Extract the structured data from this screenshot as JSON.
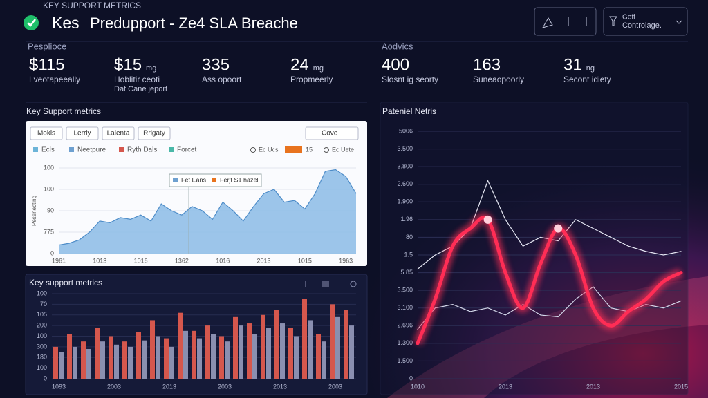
{
  "header": {
    "eyebrow": "KEY SUPPORT METRICS",
    "brand": "Kes",
    "title": "Predupport - Ze4 SLA Breache",
    "button": [
      "Geff",
      "Controlage."
    ]
  },
  "sections": [
    "Pesplioce",
    "Aodvics"
  ],
  "metrics": [
    {
      "value": "$115",
      "label": "Lveotapeeally"
    },
    {
      "value": "$15",
      "unit": "mg",
      "label": "Hoblitir ceoti",
      "label2": "Dat Cane jeport"
    },
    {
      "value": "335",
      "label": "Ass opoort"
    },
    {
      "value": "24",
      "unit": "mg",
      "label": "Propmeerly"
    },
    {
      "value": "400",
      "label": "Slosnt ig seorty"
    },
    {
      "value": "163",
      "label": "Suneaopoorly"
    },
    {
      "value": "31",
      "unit": "ng",
      "label": "Secont idiety"
    }
  ],
  "area_panel": {
    "tabs": [
      "Mokls",
      "Lerriy",
      "Lalenta",
      "Rrigaty"
    ],
    "dropdown": "Cove",
    "legend": [
      "Ecls",
      "Neetpure",
      "Ryth Dals",
      "Forcet"
    ],
    "legend_right": [
      "Ec Ucs",
      "15",
      "Ec Uete"
    ],
    "tooltip": [
      "Fet Eans",
      "Ferjt S1 hazel"
    ]
  },
  "chart_data": [
    {
      "type": "area",
      "title": "Key Support metrics",
      "y_label": "Pesenecting",
      "color": "#8bbbe6",
      "categories": [
        "1961",
        null,
        null,
        null,
        "1013",
        null,
        null,
        null,
        "1016",
        null,
        null,
        null,
        "1362",
        null,
        null,
        null,
        "1016",
        null,
        null,
        null,
        "2013",
        null,
        null,
        null,
        "1015",
        null,
        null,
        null,
        "1963",
        null
      ],
      "values": [
        10,
        12,
        16,
        25,
        38,
        36,
        42,
        40,
        45,
        38,
        58,
        50,
        45,
        55,
        50,
        40,
        60,
        50,
        38,
        55,
        70,
        75,
        60,
        62,
        52,
        70,
        96,
        98,
        90,
        70
      ],
      "ylim": [
        0,
        100
      ],
      "yticks": [
        0,
        {
          "value": 25,
          "label": "775"
        },
        {
          "value": 50,
          "label": "90"
        },
        {
          "value": 75,
          "label": "100"
        },
        100
      ]
    },
    {
      "type": "bar",
      "title": "Key support metrics",
      "categories": [
        "1093",
        null,
        null,
        null,
        "2003",
        null,
        null,
        null,
        "2013",
        null,
        null,
        null,
        "2003",
        null,
        null,
        null,
        "2013",
        null,
        null,
        null,
        "2003",
        null
      ],
      "series": [
        {
          "color": "#d5574d",
          "values": [
            30,
            42,
            35,
            48,
            40,
            35,
            44,
            55,
            38,
            62,
            45,
            50,
            40,
            58,
            52,
            60,
            65,
            48,
            75,
            42,
            70,
            65
          ]
        },
        {
          "color": "#8a8fb0",
          "values": [
            25,
            30,
            28,
            35,
            32,
            30,
            36,
            40,
            30,
            45,
            38,
            42,
            35,
            50,
            42,
            48,
            52,
            40,
            55,
            35,
            58,
            50
          ]
        }
      ],
      "ylim": [
        0,
        80
      ],
      "yticks": [
        0,
        {
          "value": 10,
          "label": "100"
        },
        {
          "value": 20,
          "label": "180"
        },
        {
          "value": 30,
          "label": "300"
        },
        {
          "value": 40,
          "label": "100"
        },
        {
          "value": 50,
          "label": "200"
        },
        {
          "value": 60,
          "label": "105"
        },
        70,
        {
          "value": 80,
          "label": "100"
        }
      ]
    },
    {
      "type": "line",
      "title": "Pateniel Netris",
      "categories": [
        "1010",
        null,
        null,
        null,
        null,
        "2013",
        null,
        null,
        null,
        null,
        "2013",
        null,
        null,
        null,
        null,
        "2015"
      ],
      "series": [
        {
          "color": "#e6e8f4",
          "values": [
            62,
            70,
            75,
            85,
            112,
            90,
            75,
            80,
            78,
            90,
            85,
            80,
            75,
            72,
            70,
            72
          ]
        },
        {
          "color": "#d4d8ea",
          "values": [
            28,
            40,
            42,
            38,
            40,
            36,
            42,
            36,
            35,
            45,
            52,
            40,
            38,
            42,
            40,
            44
          ]
        },
        {
          "color": "#ff2d55",
          "values": [
            20,
            45,
            75,
            85,
            90,
            60,
            40,
            65,
            85,
            70,
            40,
            30,
            38,
            45,
            55,
            60
          ]
        }
      ],
      "ylim": [
        0,
        140
      ],
      "yticks": [
        0,
        {
          "value": 10,
          "label": "1.500"
        },
        {
          "value": 20,
          "label": "1.300"
        },
        {
          "value": 30,
          "label": "2.696"
        },
        {
          "value": 40,
          "label": "3.100"
        },
        {
          "value": 50,
          "label": "3.500"
        },
        {
          "value": 60,
          "label": "5.85"
        },
        {
          "value": 70,
          "label": "1.5"
        },
        80,
        {
          "value": 90,
          "label": "1.96"
        },
        {
          "value": 100,
          "label": "1.900"
        },
        {
          "value": 110,
          "label": "2.600"
        },
        {
          "value": 120,
          "label": "3.800"
        },
        {
          "value": 130,
          "label": "3.500"
        },
        {
          "value": 140,
          "label": "5006"
        }
      ]
    }
  ]
}
